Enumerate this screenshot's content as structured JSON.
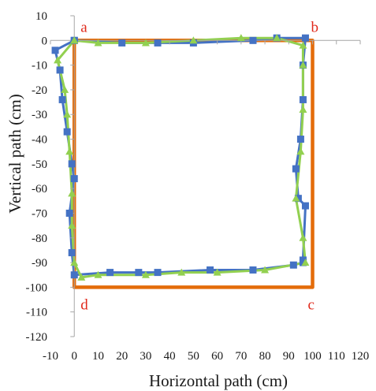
{
  "chart_data": {
    "type": "scatter",
    "title": "",
    "xlabel": "Horizontal path (cm)",
    "ylabel": "Vertical path (cm)",
    "xlim": [
      -10,
      120
    ],
    "ylim": [
      -120,
      10
    ],
    "x_ticks": [
      -10,
      0,
      10,
      20,
      30,
      40,
      50,
      60,
      70,
      80,
      90,
      100,
      110,
      120
    ],
    "y_ticks": [
      10,
      0,
      -10,
      -20,
      -30,
      -40,
      -50,
      -60,
      -70,
      -80,
      -90,
      -100,
      -110,
      -120
    ],
    "x_tick_labels": [
      "-10",
      "0",
      "10",
      "20",
      "30",
      "40",
      "50",
      "60",
      "70",
      "80",
      "90",
      "100",
      "110",
      "120"
    ],
    "y_tick_labels": [
      "10",
      "0",
      "-10",
      "-20",
      "-30",
      "-40",
      "-50",
      "-60",
      "-70",
      "-80",
      "-90",
      "-100",
      "-110",
      "-120"
    ],
    "grid": false,
    "legend": "none",
    "corner_labels": [
      {
        "text": "a",
        "x": 0,
        "y": 0
      },
      {
        "text": "b",
        "x": 100,
        "y": 0
      },
      {
        "text": "c",
        "x": 100,
        "y": -100
      },
      {
        "text": "d",
        "x": 0,
        "y": -100
      }
    ],
    "series": [
      {
        "color": "#e46c0a",
        "marker": "none",
        "points": [
          [
            0,
            0
          ],
          [
            100,
            0
          ],
          [
            100,
            -100
          ],
          [
            0,
            -100
          ],
          [
            0,
            0
          ]
        ]
      },
      {
        "color": "#4472c4",
        "marker": "square",
        "points": [
          [
            0,
            0
          ],
          [
            -8,
            -4
          ],
          [
            -6,
            -12
          ],
          [
            -5,
            -24
          ],
          [
            -3,
            -37
          ],
          [
            -1,
            -50
          ],
          [
            0,
            -56
          ],
          [
            -2,
            -70
          ],
          [
            -1,
            -86
          ],
          [
            0,
            -95
          ],
          [
            15,
            -94
          ],
          [
            27,
            -94
          ],
          [
            35,
            -94
          ],
          [
            57,
            -93
          ],
          [
            75,
            -93
          ],
          [
            92,
            -91
          ],
          [
            96,
            -90
          ],
          [
            96,
            -89
          ],
          [
            97,
            -67
          ],
          [
            94,
            -64
          ],
          [
            93,
            -52
          ],
          [
            95,
            -40
          ],
          [
            96,
            -24
          ],
          [
            96,
            -10
          ],
          [
            97,
            1
          ],
          [
            85,
            1
          ],
          [
            75,
            0
          ],
          [
            50,
            -1
          ],
          [
            35,
            -1
          ],
          [
            20,
            -1
          ],
          [
            0,
            0
          ]
        ]
      },
      {
        "color": "#92d050",
        "marker": "triangle",
        "points": [
          [
            0,
            0
          ],
          [
            -7,
            -8
          ],
          [
            -4,
            -20
          ],
          [
            -3,
            -30
          ],
          [
            -2,
            -45
          ],
          [
            -1,
            -62
          ],
          [
            -1,
            -75
          ],
          [
            0,
            -90
          ],
          [
            3,
            -96
          ],
          [
            10,
            -95
          ],
          [
            30,
            -95
          ],
          [
            45,
            -94
          ],
          [
            60,
            -94
          ],
          [
            80,
            -93
          ],
          [
            97,
            -90
          ],
          [
            96,
            -80
          ],
          [
            93,
            -64
          ],
          [
            95,
            -45
          ],
          [
            96,
            -28
          ],
          [
            96,
            -10
          ],
          [
            96,
            -2
          ],
          [
            85,
            1
          ],
          [
            70,
            1
          ],
          [
            50,
            0
          ],
          [
            30,
            -1
          ],
          [
            10,
            -1
          ],
          [
            0,
            0
          ]
        ]
      }
    ]
  }
}
